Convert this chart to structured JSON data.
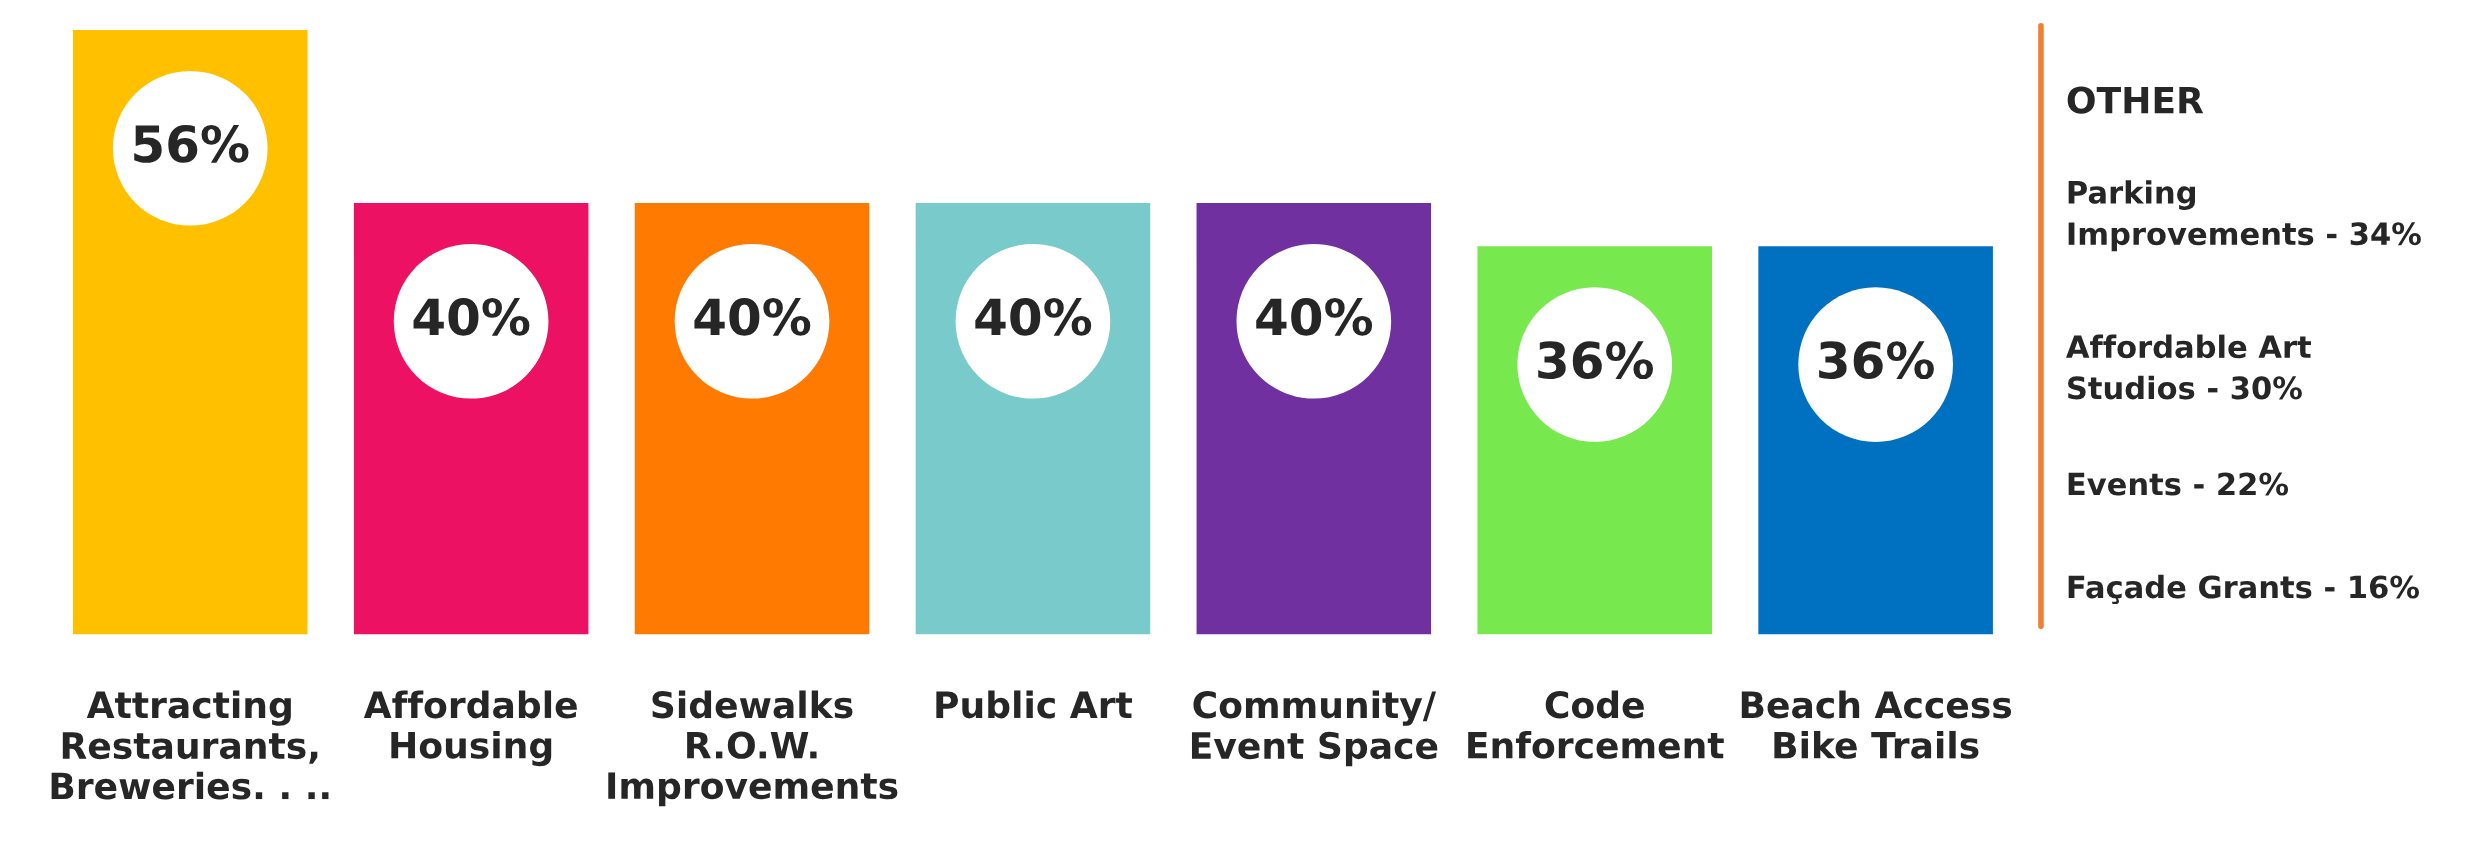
{
  "chart_data": {
    "type": "bar",
    "categories": [
      "Attracting\nRestaurants,\nBreweries. . ..",
      "Affordable\nHousing",
      "Sidewalks\nR.O.W.\nImprovements",
      "Public Art",
      "Community/\nEvent Space",
      "Code\nEnforcement",
      "Beach Access\nBike Trails"
    ],
    "values": [
      56,
      40,
      40,
      40,
      40,
      36,
      36
    ],
    "colors": [
      "#ffc000",
      "#ec1163",
      "#ff7a00",
      "#78cacb",
      "#7030a0",
      "#77e84e",
      "#0070c0"
    ],
    "value_labels": [
      "56%",
      "40%",
      "40%",
      "40%",
      "40%",
      "36%",
      "36%"
    ],
    "annotations": [
      "OTHER",
      "Parking\nImprovements - 34%",
      "Affordable Art\nStudios - 30%",
      "Events - 22%",
      "Façade Grants - 16%"
    ],
    "grid": false,
    "legend": false
  }
}
